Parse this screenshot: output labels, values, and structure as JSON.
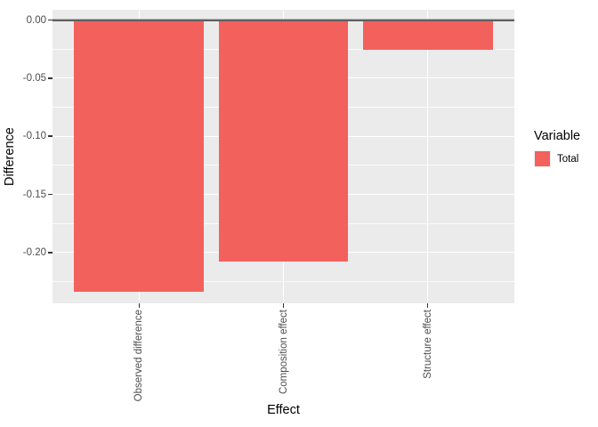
{
  "chart_data": {
    "type": "bar",
    "title": "",
    "xlabel": "Effect",
    "ylabel": "Difference",
    "categories": [
      "Observed difference",
      "Composition effect",
      "Structure effect"
    ],
    "values": [
      -0.234,
      -0.208,
      -0.026
    ],
    "series": [
      {
        "name": "Total",
        "values": [
          -0.234,
          -0.208,
          -0.026
        ]
      }
    ],
    "ylim": [
      -0.2437,
      0.0088
    ],
    "y_ticks": [
      {
        "value": 0.0,
        "label": "0.00"
      },
      {
        "value": -0.05,
        "label": "-0.05"
      },
      {
        "value": -0.1,
        "label": "-0.10"
      },
      {
        "value": -0.15,
        "label": "-0.15"
      },
      {
        "value": -0.2,
        "label": "-0.20"
      }
    ],
    "y_minor_ticks": [
      -0.025,
      -0.075,
      -0.125,
      -0.175,
      -0.225
    ],
    "grid": "on",
    "zero_reference_line": 0,
    "legend": {
      "title": "Variable",
      "position": "right",
      "entries": [
        {
          "label": "Total",
          "color": "#F3615C"
        }
      ]
    },
    "colors": {
      "bar": "#F3615C",
      "panel_bg": "#EBEBEB",
      "grid": "#FFFFFF",
      "zero_line": "#606060",
      "tick_text": "#4D4D4D",
      "axis_title_text": "#000000"
    }
  }
}
